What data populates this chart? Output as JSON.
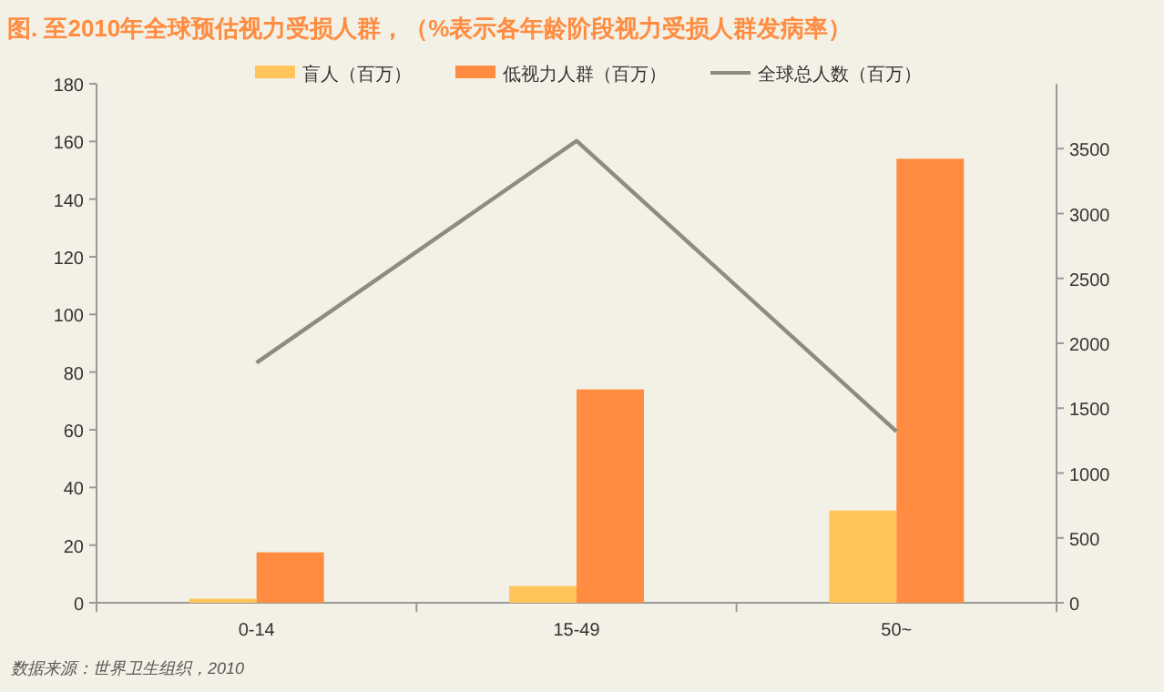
{
  "chart_data": {
    "type": "bar",
    "title": "图. 至2010年全球预估视力受损人群，（%表示各年龄阶段视力受损人群发病率）",
    "categories": [
      "0-14",
      "15-49",
      "50~"
    ],
    "series": [
      {
        "name": "盲人（百万）",
        "color": "#ffc55a",
        "values": [
          1.4,
          5.8,
          32
        ]
      },
      {
        "name": "低视力人群（百万）",
        "color": "#ff8c40",
        "values": [
          17.5,
          74,
          154
        ]
      },
      {
        "name": "全球总人数（百万）",
        "type": "line",
        "axis": "y2",
        "color": "#8c8c80",
        "values": [
          1850,
          3560,
          1320
        ]
      }
    ],
    "ylim": [
      0,
      180
    ],
    "yticks": [
      0,
      20,
      40,
      60,
      80,
      100,
      120,
      140,
      160,
      180
    ],
    "y2lim": [
      0,
      4000
    ],
    "y2ticks": [
      0,
      500,
      1000,
      1500,
      2000,
      2500,
      3000,
      3500
    ],
    "legend": "top",
    "grid": false,
    "marker": "none",
    "annotations": [
      "数据来源：世界卫生组织，2010"
    ]
  }
}
